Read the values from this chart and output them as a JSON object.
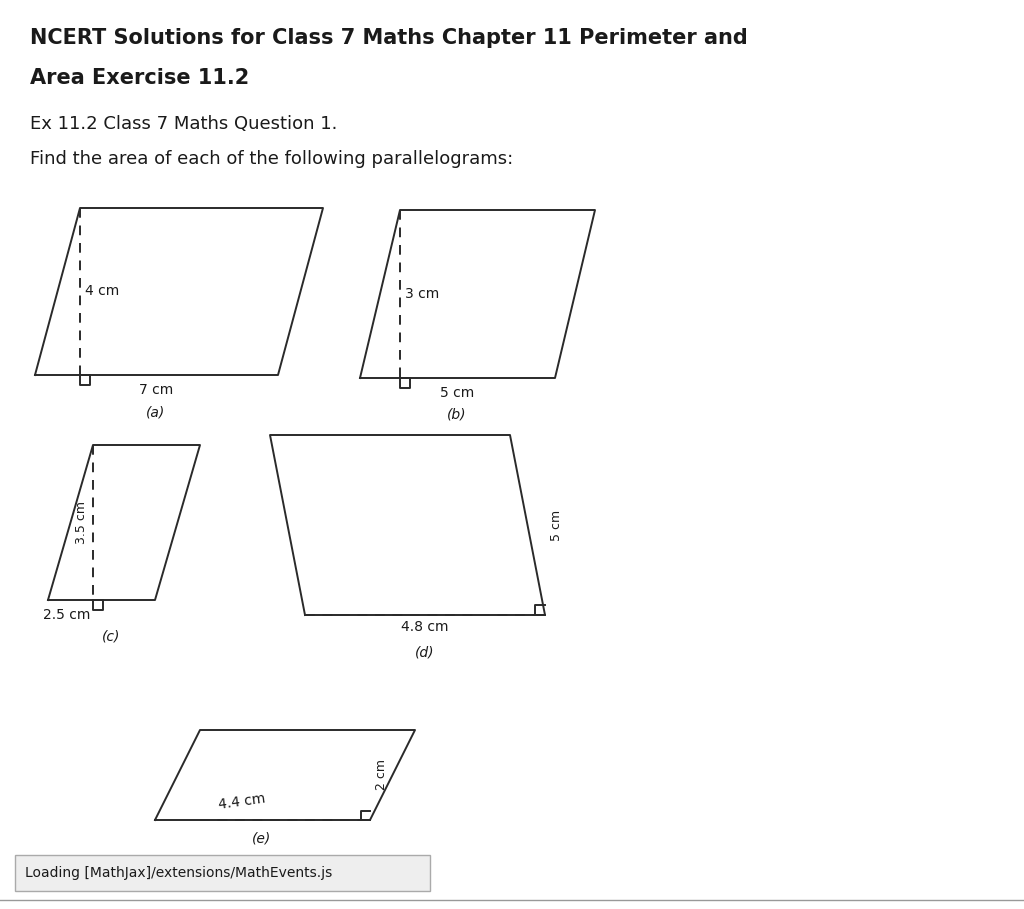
{
  "title_line1": "NCERT Solutions for Class 7 Maths Chapter 11 Perimeter and",
  "title_line2": "Area Exercise 11.2",
  "subtitle1": "Ex 11.2 Class 7 Maths Question 1.",
  "subtitle2": "Find the area of each of the following parallelograms:",
  "background_color": "#ffffff",
  "text_color": "#1a1a1a",
  "shape_color": "#2a2a2a",
  "footer_text": "Loading [MathJax]/extensions/MathEvents.js",
  "title_fontsize": 15,
  "subtitle_fontsize": 13,
  "shape_fontsize": 10
}
